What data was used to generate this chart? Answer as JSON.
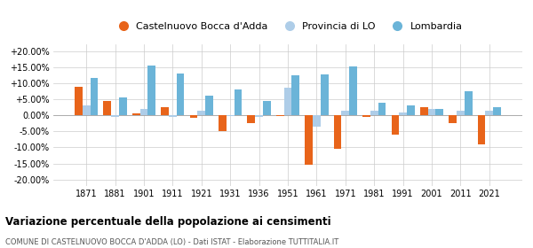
{
  "years": [
    1871,
    1881,
    1901,
    1911,
    1921,
    1931,
    1936,
    1951,
    1961,
    1971,
    1981,
    1991,
    2001,
    2011,
    2021
  ],
  "castelnuovo": [
    9.0,
    4.5,
    0.5,
    2.5,
    -0.7,
    -4.8,
    -2.5,
    -0.3,
    -15.5,
    -10.5,
    -0.5,
    -6.0,
    2.5,
    -2.5,
    -9.0
  ],
  "provincia": [
    3.0,
    -0.5,
    2.0,
    -0.5,
    1.5,
    -0.3,
    -0.5,
    8.5,
    -3.5,
    1.5,
    1.5,
    1.0,
    2.0,
    1.5,
    1.5
  ],
  "lombardia": [
    11.5,
    5.5,
    15.5,
    13.0,
    6.0,
    8.0,
    4.5,
    12.5,
    12.7,
    15.2,
    4.0,
    3.0,
    2.0,
    7.5,
    2.5
  ],
  "color_castelnuovo": "#E8641A",
  "color_provincia": "#AECDE8",
  "color_lombardia": "#6BB4D8",
  "ylim": [
    -22,
    22
  ],
  "yticks": [
    -20,
    -15,
    -10,
    -5,
    0,
    5,
    10,
    15,
    20
  ],
  "title": "Variazione percentuale della popolazione ai censimenti",
  "subtitle": "COMUNE DI CASTELNUOVO BOCCA D'ADDA (LO) - Dati ISTAT - Elaborazione TUTTITALIA.IT",
  "legend_labels": [
    "Castelnuovo Bocca d'Adda",
    "Provincia di LO",
    "Lombardia"
  ],
  "bar_width": 0.27
}
